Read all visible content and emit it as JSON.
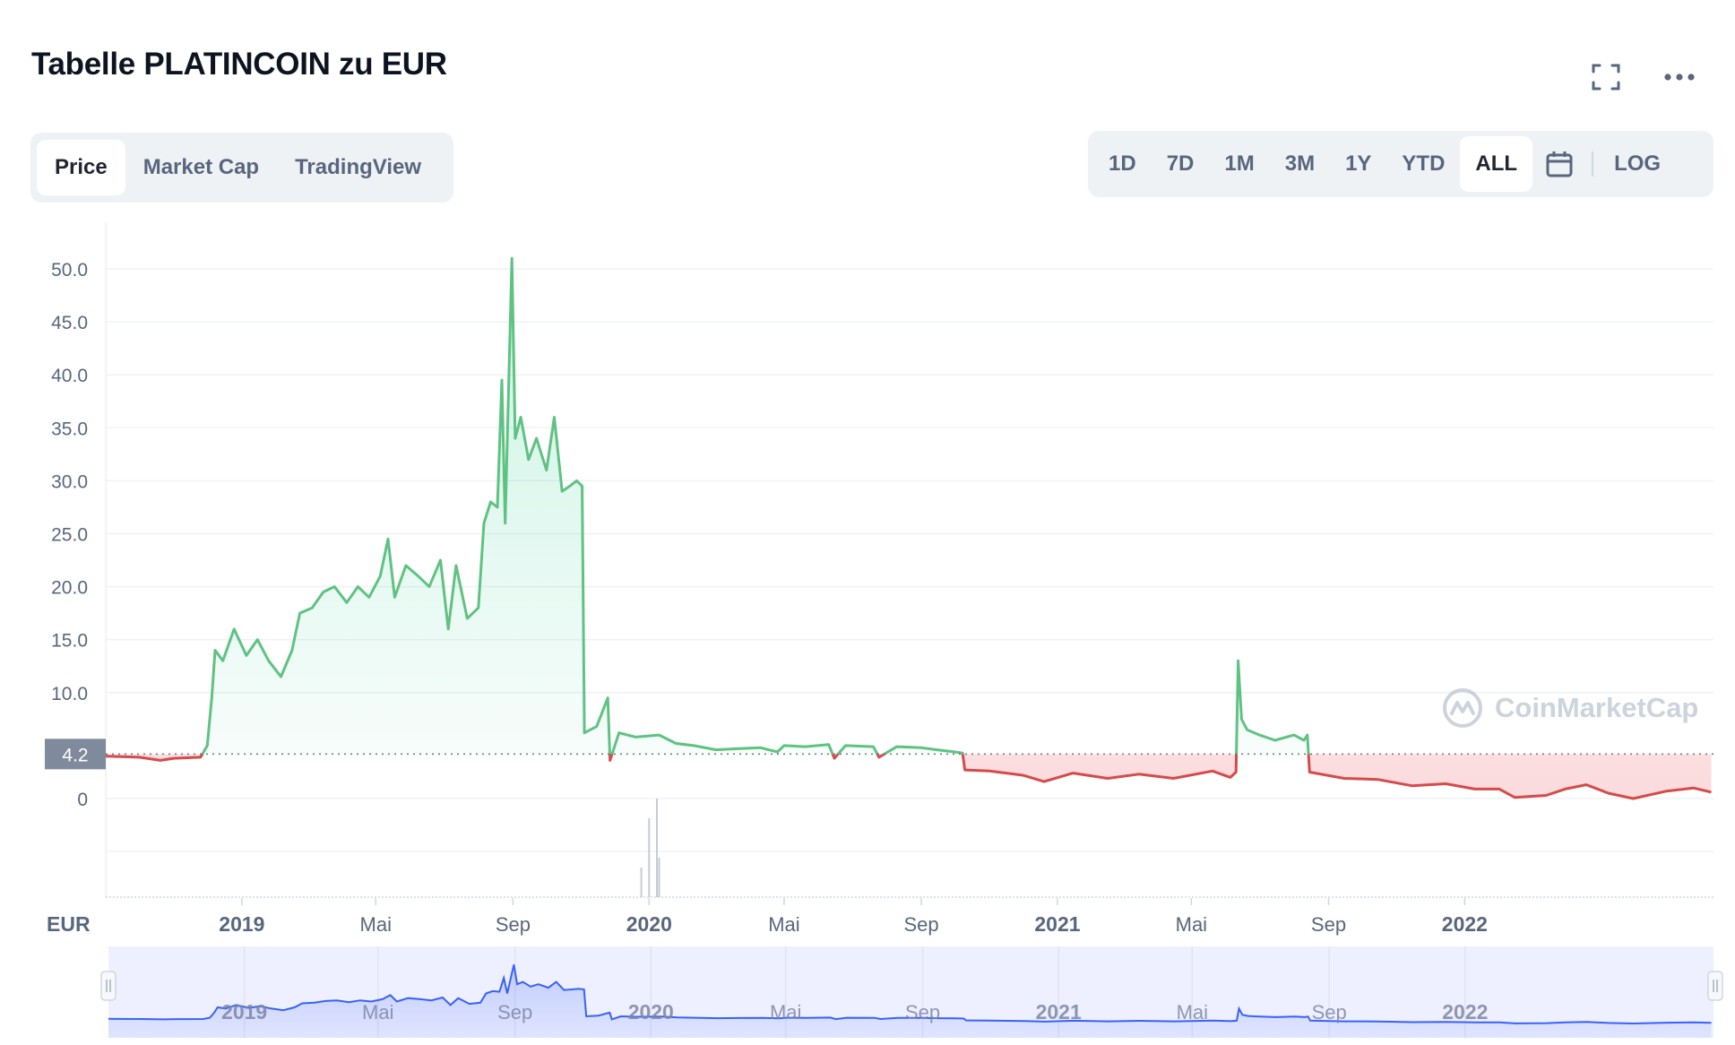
{
  "header": {
    "title": "Tabelle PLATINCOIN zu EUR"
  },
  "tabs": [
    {
      "label": "Price",
      "active": true
    },
    {
      "label": "Market Cap",
      "active": false
    },
    {
      "label": "TradingView",
      "active": false
    }
  ],
  "ranges": [
    {
      "label": "1D",
      "active": false
    },
    {
      "label": "7D",
      "active": false
    },
    {
      "label": "1M",
      "active": false
    },
    {
      "label": "3M",
      "active": false
    },
    {
      "label": "1Y",
      "active": false
    },
    {
      "label": "YTD",
      "active": false
    },
    {
      "label": "ALL",
      "active": true
    }
  ],
  "log_label": "LOG",
  "watermark": "CoinMarketCap",
  "colors": {
    "up": "#16c784",
    "up_line": "#5fc282",
    "down": "#d64a4a",
    "navigator": "#3861fb",
    "grid": "#eff2f5",
    "text": "#58667e"
  },
  "chart_data": {
    "type": "area",
    "currency_label": "EUR",
    "current_value_label": "4.2",
    "baseline": 4.2,
    "y_ticks": [
      "0",
      "10.0",
      "15.0",
      "20.0",
      "25.0",
      "30.0",
      "35.0",
      "40.0",
      "45.0",
      "50.0"
    ],
    "ylim": [
      0,
      52
    ],
    "x_ticks": [
      {
        "label": "2019",
        "major": true
      },
      {
        "label": "Mai",
        "major": false
      },
      {
        "label": "Sep",
        "major": false
      },
      {
        "label": "2020",
        "major": true
      },
      {
        "label": "Mai",
        "major": false
      },
      {
        "label": "Sep",
        "major": false
      },
      {
        "label": "2021",
        "major": true
      },
      {
        "label": "Mai",
        "major": false
      },
      {
        "label": "Sep",
        "major": false
      },
      {
        "label": "2022",
        "major": true
      }
    ],
    "series": [
      {
        "points": [
          [
            "2018-09-01",
            4.0
          ],
          [
            "2018-10-01",
            3.9
          ],
          [
            "2018-10-20",
            3.6
          ],
          [
            "2018-11-01",
            3.8
          ],
          [
            "2018-11-25",
            3.9
          ],
          [
            "2018-12-01",
            5.0
          ],
          [
            "2018-12-05",
            9.5
          ],
          [
            "2018-12-08",
            14.0
          ],
          [
            "2018-12-15",
            13.0
          ],
          [
            "2018-12-25",
            16.0
          ],
          [
            "2019-01-05",
            13.5
          ],
          [
            "2019-01-15",
            15.0
          ],
          [
            "2019-01-25",
            13.0
          ],
          [
            "2019-02-05",
            11.5
          ],
          [
            "2019-02-15",
            14.0
          ],
          [
            "2019-02-22",
            17.5
          ],
          [
            "2019-03-05",
            18.0
          ],
          [
            "2019-03-15",
            19.5
          ],
          [
            "2019-03-25",
            20.0
          ],
          [
            "2019-04-05",
            18.5
          ],
          [
            "2019-04-15",
            20.0
          ],
          [
            "2019-04-25",
            19.0
          ],
          [
            "2019-05-05",
            21.0
          ],
          [
            "2019-05-12",
            24.5
          ],
          [
            "2019-05-18",
            19.0
          ],
          [
            "2019-05-28",
            22.0
          ],
          [
            "2019-06-08",
            21.0
          ],
          [
            "2019-06-18",
            20.0
          ],
          [
            "2019-06-28",
            22.5
          ],
          [
            "2019-07-05",
            16.0
          ],
          [
            "2019-07-12",
            22.0
          ],
          [
            "2019-07-22",
            17.0
          ],
          [
            "2019-08-01",
            18.0
          ],
          [
            "2019-08-06",
            26.0
          ],
          [
            "2019-08-12",
            28.0
          ],
          [
            "2019-08-18",
            27.5
          ],
          [
            "2019-08-22",
            39.5
          ],
          [
            "2019-08-25",
            26.0
          ],
          [
            "2019-08-31",
            51.0
          ],
          [
            "2019-09-03",
            34.0
          ],
          [
            "2019-09-08",
            36.0
          ],
          [
            "2019-09-15",
            32.0
          ],
          [
            "2019-09-22",
            34.0
          ],
          [
            "2019-10-01",
            31.0
          ],
          [
            "2019-10-08",
            36.0
          ],
          [
            "2019-10-15",
            29.0
          ],
          [
            "2019-10-22",
            29.5
          ],
          [
            "2019-10-28",
            30.0
          ],
          [
            "2019-11-02",
            29.5
          ],
          [
            "2019-11-04",
            6.2
          ],
          [
            "2019-11-15",
            6.8
          ],
          [
            "2019-11-25",
            9.5
          ],
          [
            "2019-11-27",
            3.6
          ],
          [
            "2019-12-05",
            6.2
          ],
          [
            "2019-12-20",
            5.8
          ],
          [
            "2020-01-10",
            6.0
          ],
          [
            "2020-01-25",
            5.2
          ],
          [
            "2020-02-10",
            5.0
          ],
          [
            "2020-03-01",
            4.6
          ],
          [
            "2020-03-20",
            4.7
          ],
          [
            "2020-04-10",
            4.8
          ],
          [
            "2020-04-25",
            4.4
          ],
          [
            "2020-05-01",
            5.0
          ],
          [
            "2020-05-20",
            4.9
          ],
          [
            "2020-06-10",
            5.1
          ],
          [
            "2020-06-15",
            3.8
          ],
          [
            "2020-06-25",
            5.0
          ],
          [
            "2020-07-20",
            4.9
          ],
          [
            "2020-07-25",
            3.9
          ],
          [
            "2020-08-10",
            4.9
          ],
          [
            "2020-09-01",
            4.8
          ],
          [
            "2020-09-15",
            4.6
          ],
          [
            "2020-10-01",
            4.4
          ],
          [
            "2020-10-08",
            4.3
          ],
          [
            "2020-10-10",
            2.7
          ],
          [
            "2020-11-01",
            2.6
          ],
          [
            "2020-12-01",
            2.2
          ],
          [
            "2020-12-20",
            1.6
          ],
          [
            "2021-01-15",
            2.4
          ],
          [
            "2021-02-15",
            1.9
          ],
          [
            "2021-03-15",
            2.3
          ],
          [
            "2021-04-15",
            1.9
          ],
          [
            "2021-05-20",
            2.6
          ],
          [
            "2021-06-05",
            2.0
          ],
          [
            "2021-06-10",
            2.5
          ],
          [
            "2021-06-12",
            13.0
          ],
          [
            "2021-06-15",
            7.5
          ],
          [
            "2021-06-20",
            6.5
          ],
          [
            "2021-07-01",
            6.0
          ],
          [
            "2021-07-15",
            5.5
          ],
          [
            "2021-08-01",
            6.0
          ],
          [
            "2021-08-10",
            5.5
          ],
          [
            "2021-08-13",
            6.0
          ],
          [
            "2021-08-15",
            2.5
          ],
          [
            "2021-09-15",
            1.9
          ],
          [
            "2021-10-15",
            1.8
          ],
          [
            "2021-11-15",
            1.2
          ],
          [
            "2021-12-15",
            1.4
          ],
          [
            "2022-01-10",
            0.9
          ],
          [
            "2022-02-01",
            0.9
          ],
          [
            "2022-02-15",
            0.1
          ],
          [
            "2022-03-15",
            0.3
          ],
          [
            "2022-04-01",
            0.9
          ],
          [
            "2022-04-20",
            1.3
          ],
          [
            "2022-05-10",
            0.5
          ],
          [
            "2022-06-01",
            0.0
          ],
          [
            "2022-07-01",
            0.7
          ],
          [
            "2022-07-25",
            1.0
          ],
          [
            "2022-08-10",
            0.6
          ]
        ]
      }
    ],
    "volume": [
      [
        "2019-12-25",
        0.3
      ],
      [
        "2020-01-01",
        0.8
      ],
      [
        "2020-01-08",
        1.0
      ],
      [
        "2020-01-10",
        0.4
      ]
    ]
  }
}
